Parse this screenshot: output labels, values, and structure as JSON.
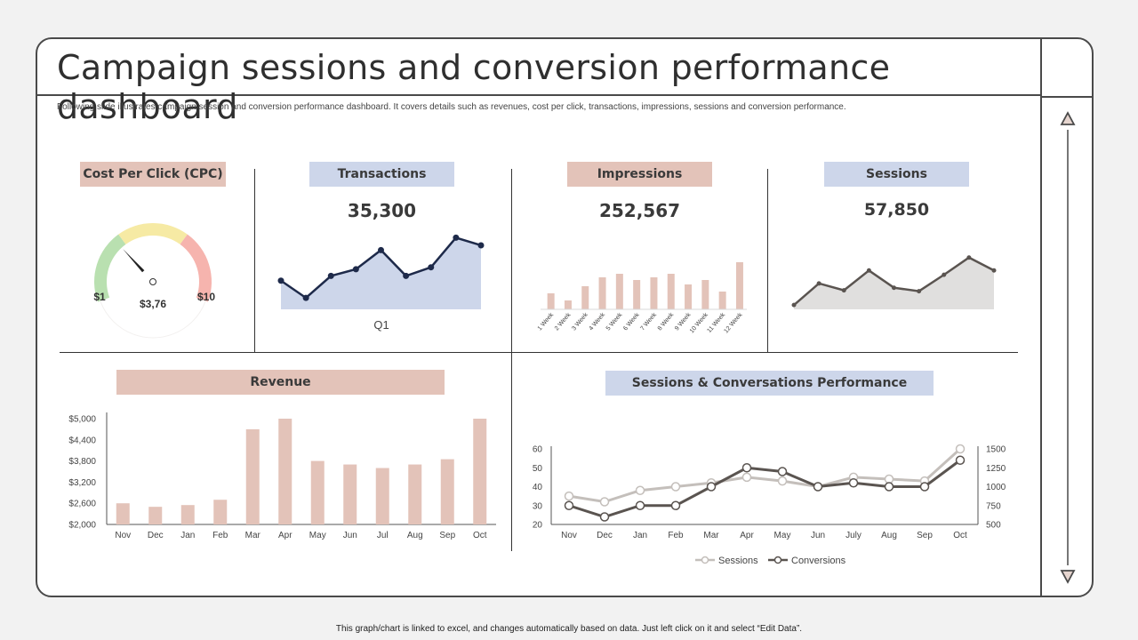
{
  "title": "Campaign sessions and conversion performance dashboard",
  "subtitle": "Following slide illustrates campaign session and conversion performance dashboard. It covers details such as revenues, cost per click, transactions, impressions, sessions and conversion performance.",
  "footer": "This graph/chart is linked to excel, and changes automatically based on data. Just left click on it and select “Edit Data”.",
  "cpc": {
    "label": "Cost Per Click (CPC)",
    "min_label": "$1",
    "max_label": "$10",
    "value_label": "$3,76",
    "value": 3.76,
    "min": 1,
    "max": 10
  },
  "transactions": {
    "label": "Transactions",
    "value": "35,300"
  },
  "impressions": {
    "label": "Impressions",
    "value": "252,567"
  },
  "sessions": {
    "label": "Sessions",
    "value": "57,850"
  },
  "revenue": {
    "label": "Revenue"
  },
  "performance": {
    "label": "Sessions & Conversations Performance"
  },
  "colors": {
    "pink": "#e3c3b9",
    "blue": "#cdd6ea",
    "navy": "#1e2a4a",
    "gray_line": "#5a5450",
    "light_gray": "#c4bfbb"
  },
  "chart_data": [
    {
      "type": "area",
      "id": "transactions",
      "xlabel": "Q1",
      "values": [
        30,
        12,
        35,
        42,
        62,
        35,
        44,
        75,
        67
      ]
    },
    {
      "type": "bar",
      "id": "impressions",
      "categories": [
        "1 Week",
        "2 Week",
        "3 Week",
        "4 Week",
        "5 Week",
        "6 Week",
        "7 Week",
        "8 Week",
        "9 Week",
        "10 Week",
        "11 Week",
        "12 Week"
      ],
      "values": [
        18,
        10,
        26,
        36,
        40,
        33,
        36,
        40,
        28,
        33,
        20,
        53
      ]
    },
    {
      "type": "area",
      "id": "sessions",
      "values": [
        5,
        30,
        22,
        45,
        25,
        21,
        40,
        60,
        45
      ]
    },
    {
      "type": "bar",
      "id": "revenue",
      "categories": [
        "Nov",
        "Dec",
        "Jan",
        "Feb",
        "Mar",
        "Apr",
        "May",
        "Jun",
        "Jul",
        "Aug",
        "Sep",
        "Oct"
      ],
      "values": [
        2600,
        2500,
        2550,
        2700,
        4700,
        5000,
        3800,
        3700,
        3600,
        3700,
        3850,
        5000
      ],
      "yticks": [
        "$2,000",
        "$2,600",
        "$3,200",
        "$3,800",
        "$4,400",
        "$5,000"
      ],
      "ylim": [
        2000,
        5000
      ]
    },
    {
      "type": "line",
      "id": "performance",
      "categories": [
        "Nov",
        "Dec",
        "Jan",
        "Feb",
        "Mar",
        "Apr",
        "May",
        "Jun",
        "July",
        "Aug",
        "Sep",
        "Oct"
      ],
      "y_left_ticks": [
        "20",
        "30",
        "40",
        "50",
        "60"
      ],
      "y_right_ticks": [
        "500",
        "750",
        "1000",
        "1250",
        "1500"
      ],
      "ylim_left": [
        20,
        60
      ],
      "ylim_right": [
        500,
        1500
      ],
      "series": [
        {
          "name": "Sessions",
          "axis": "left",
          "values": [
            35,
            32,
            38,
            40,
            42,
            45,
            43,
            40,
            45,
            44,
            43,
            60
          ]
        },
        {
          "name": "Conversions",
          "axis": "right",
          "values": [
            750,
            600,
            750,
            750,
            1000,
            1250,
            1200,
            1000,
            1050,
            1000,
            1000,
            1350
          ]
        }
      ],
      "legend_position": "bottom"
    }
  ]
}
